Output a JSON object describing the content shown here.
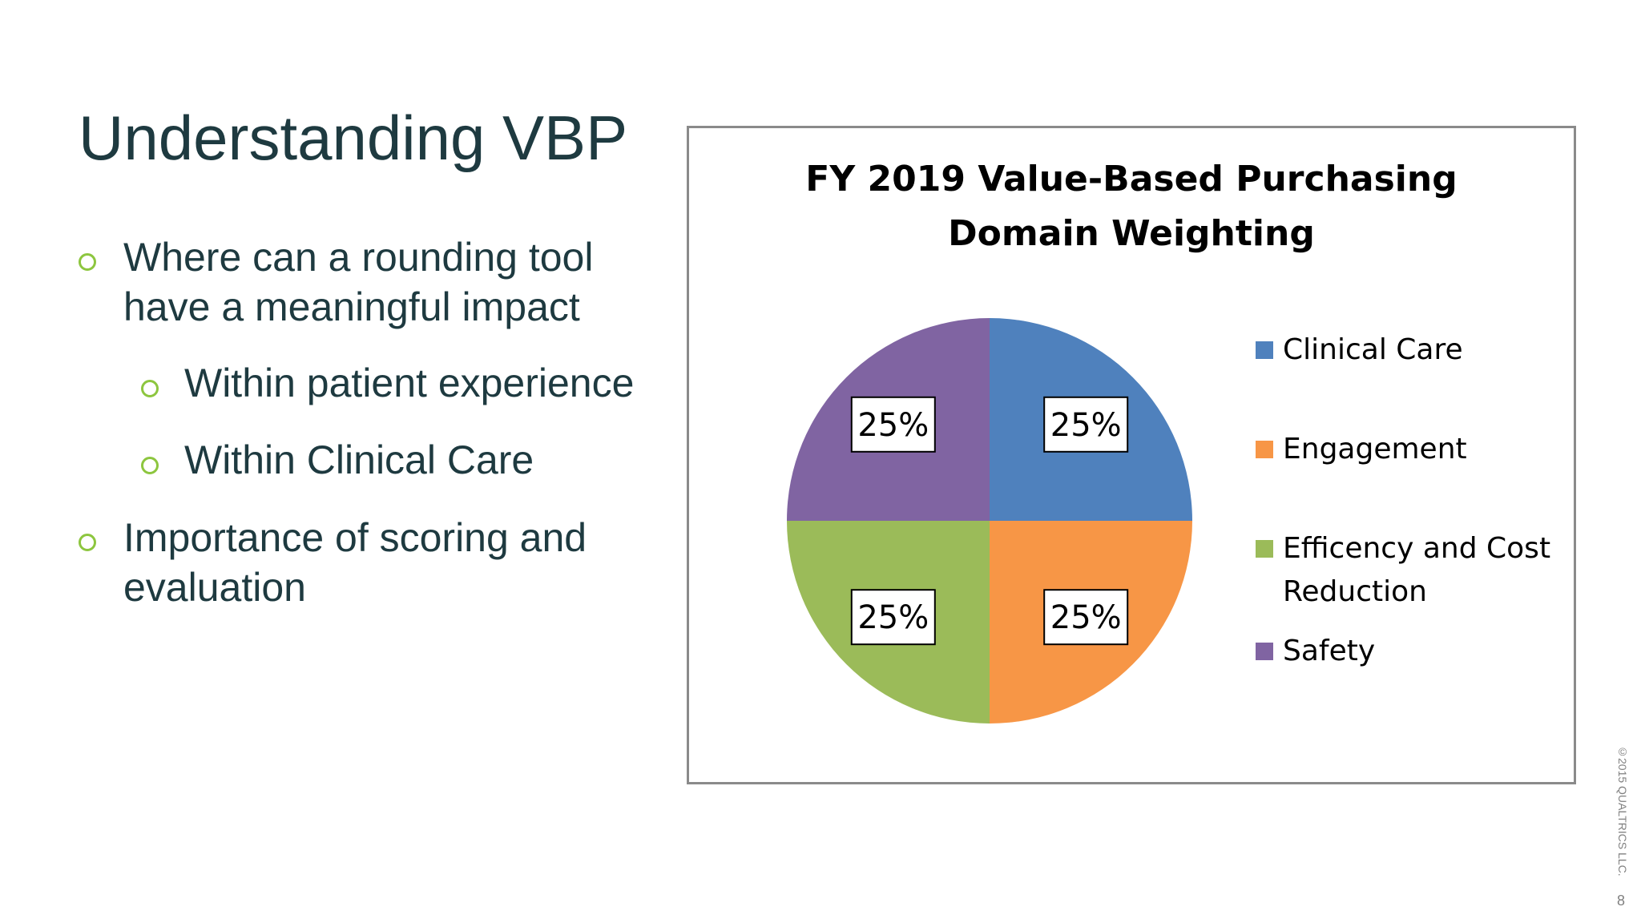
{
  "slide": {
    "title": "Understanding VBP",
    "bullets": [
      {
        "text_lines": [
          "Where can a rounding tool",
          "have a meaningful impact"
        ]
      },
      {
        "text": "Within patient experience"
      },
      {
        "text": "Within Clinical Care"
      },
      {
        "text_lines": [
          "Importance of scoring and",
          "evaluation"
        ]
      }
    ],
    "footer": {
      "copyright": "©2015 QUALTRICS LLC.",
      "page_number": "8"
    }
  },
  "chart_data": {
    "type": "pie",
    "title_lines": [
      "FY 2019 Value-Based Purchasing",
      "Domain Weighting"
    ],
    "categories": [
      "Clinical Care",
      "Engagement",
      "Efficency and Cost Reduction",
      "Safety"
    ],
    "legend_lines": [
      [
        "Clinical Care"
      ],
      [
        "Engagement"
      ],
      [
        "Efficency and Cost",
        "Reduction"
      ],
      [
        "Safety"
      ]
    ],
    "values": [
      25,
      25,
      25,
      25
    ],
    "labels": [
      "25%",
      "25%",
      "25%",
      "25%"
    ],
    "colors": [
      "#4f81bd",
      "#f79646",
      "#9bbb59",
      "#8064a2"
    ],
    "legend_position": "right"
  }
}
